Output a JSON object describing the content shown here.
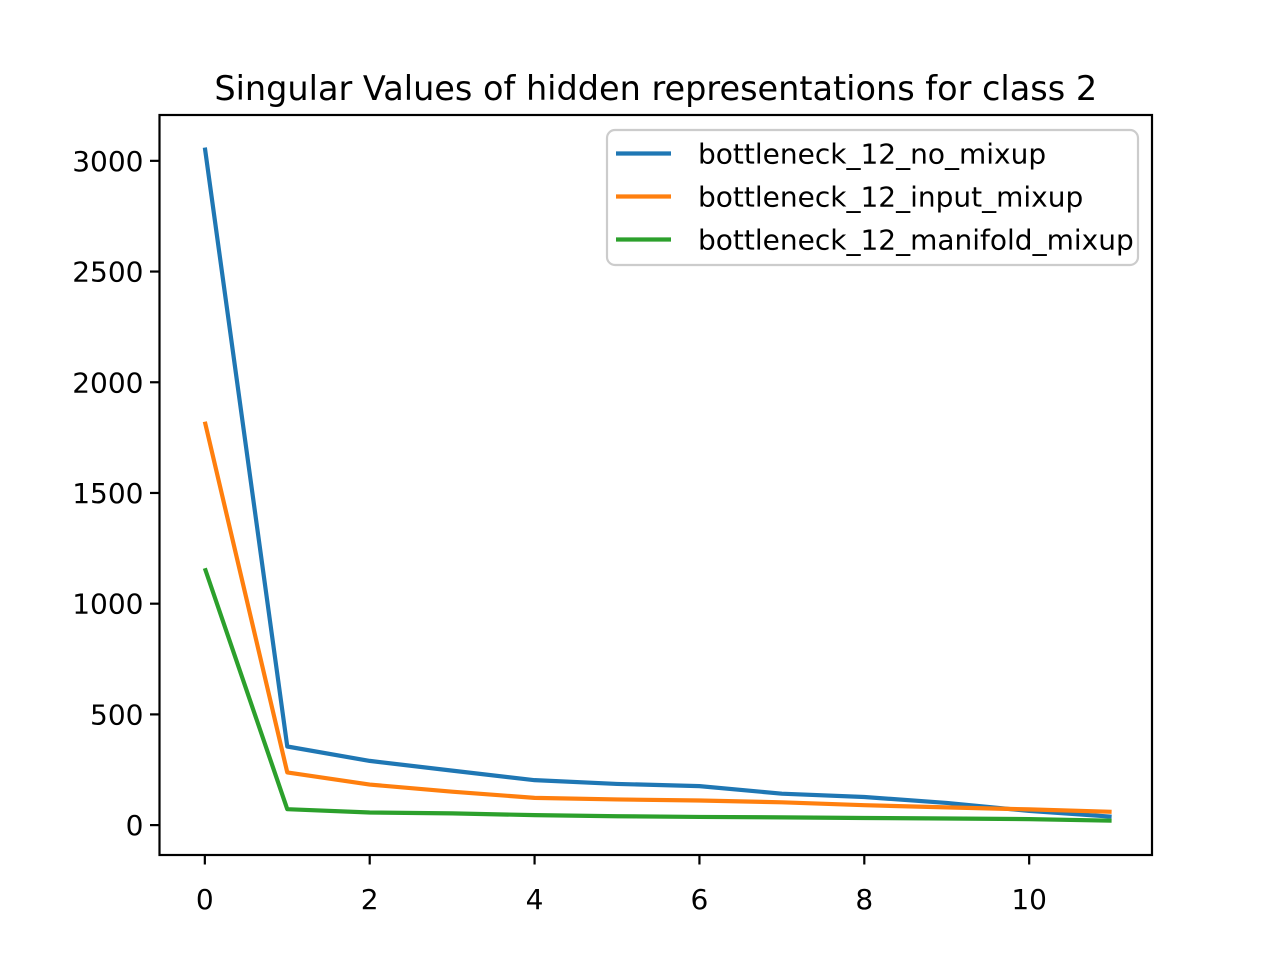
{
  "figure": {
    "background": "#ffffff"
  },
  "chart_data": {
    "type": "line",
    "title": "Singular Values of hidden representations for class 2",
    "xlabel": "",
    "ylabel": "",
    "x": [
      0,
      1,
      2,
      3,
      4,
      5,
      6,
      7,
      8,
      9,
      10,
      11
    ],
    "series": [
      {
        "name": "bottleneck_12_no_mixup",
        "color": "#1f77b4",
        "values": [
          3060,
          355,
          290,
          246,
          203,
          186,
          176,
          142,
          127,
          100,
          64,
          38
        ]
      },
      {
        "name": "bottleneck_12_input_mixup",
        "color": "#ff7f0e",
        "values": [
          1822,
          238,
          183,
          151,
          123,
          116,
          111,
          103,
          90,
          80,
          71,
          60
        ]
      },
      {
        "name": "bottleneck_12_manifold_mixup",
        "color": "#2ca02c",
        "values": [
          1160,
          72,
          57,
          53,
          45,
          40,
          37,
          35,
          32,
          30,
          27,
          20
        ]
      }
    ],
    "x_ticks": [
      0,
      2,
      4,
      6,
      8,
      10
    ],
    "y_ticks": [
      0,
      500,
      1000,
      1500,
      2000,
      2500,
      3000
    ],
    "xlim": [
      -0.55,
      11.49
    ],
    "ylim": [
      -135,
      3207
    ],
    "grid": false,
    "legend_position": "upper right",
    "axis_color": "#000000",
    "legend_border_color": "#cccccc",
    "line_width": 4.2
  }
}
